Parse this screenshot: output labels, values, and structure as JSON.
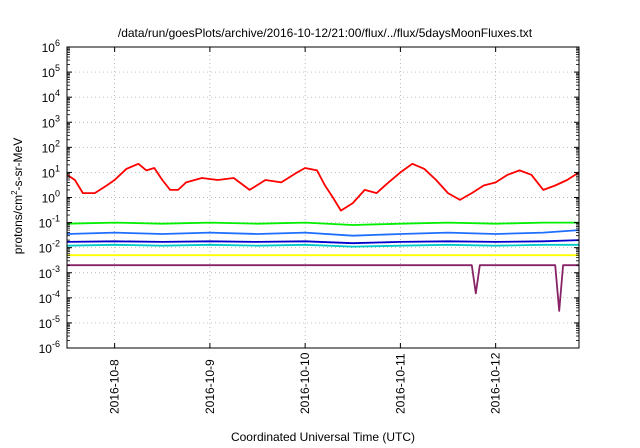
{
  "chart_data": {
    "type": "line",
    "title": "/data/run/goesPlots/archive/2016-10-12/21:00/flux/../flux/5daysMoonFluxes.txt",
    "xlabel": "Coordinated Universal Time (UTC)",
    "ylabel": {
      "before": "protons/cm",
      "sup": "2",
      "after": "-s-sr-MeV"
    },
    "yscale": "log",
    "ylim": [
      1e-06,
      1000000.0
    ],
    "xlim": [
      "2016-10-07T12:00",
      "2016-10-12T21:00"
    ],
    "grid": true,
    "legend": "none",
    "y_ticks": [
      {
        "base": "10",
        "exp": "-6"
      },
      {
        "base": "10",
        "exp": "-5"
      },
      {
        "base": "10",
        "exp": "-4"
      },
      {
        "base": "10",
        "exp": "-3"
      },
      {
        "base": "10",
        "exp": "-2"
      },
      {
        "base": "10",
        "exp": "-1"
      },
      {
        "base": "10",
        "exp": "0"
      },
      {
        "base": "10",
        "exp": "1"
      },
      {
        "base": "10",
        "exp": "2"
      },
      {
        "base": "10",
        "exp": "3"
      },
      {
        "base": "10",
        "exp": "4"
      },
      {
        "base": "10",
        "exp": "5"
      },
      {
        "base": "10",
        "exp": "6"
      }
    ],
    "x_ticks": [
      "2016-10-8",
      "2016-10-9",
      "2016-10-10",
      "2016-10-11",
      "2016-10-12"
    ],
    "series": [
      {
        "color": "#ff0000",
        "x": [
          "2016-10-07T12:00",
          "2016-10-07T14:00",
          "2016-10-07T16:00",
          "2016-10-07T19:00",
          "2016-10-07T22:00",
          "2016-10-08T00:00",
          "2016-10-08T03:00",
          "2016-10-08T06:00",
          "2016-10-08T08:00",
          "2016-10-08T10:00",
          "2016-10-08T12:00",
          "2016-10-08T14:00",
          "2016-10-08T16:00",
          "2016-10-08T18:00",
          "2016-10-08T22:00",
          "2016-10-09T02:00",
          "2016-10-09T06:00",
          "2016-10-09T10:00",
          "2016-10-09T14:00",
          "2016-10-09T18:00",
          "2016-10-09T22:00",
          "2016-10-10T00:00",
          "2016-10-10T03:00",
          "2016-10-10T05:00",
          "2016-10-10T07:00",
          "2016-10-10T09:00",
          "2016-10-10T12:00",
          "2016-10-10T15:00",
          "2016-10-10T18:00",
          "2016-10-10T21:00",
          "2016-10-11T00:00",
          "2016-10-11T03:00",
          "2016-10-11T06:00",
          "2016-10-11T09:00",
          "2016-10-11T12:00",
          "2016-10-11T15:00",
          "2016-10-11T18:00",
          "2016-10-11T21:00",
          "2016-10-12T00:00",
          "2016-10-12T03:00",
          "2016-10-12T06:00",
          "2016-10-12T09:00",
          "2016-10-12T12:00",
          "2016-10-12T15:00",
          "2016-10-12T18:00",
          "2016-10-12T21:00"
        ],
        "values": [
          8,
          5,
          1.5,
          1.5,
          3,
          5,
          14,
          22,
          12,
          15,
          5,
          2,
          2,
          4,
          6,
          5,
          6,
          2,
          5,
          4,
          10,
          15,
          12,
          3,
          1,
          0.3,
          0.6,
          2,
          1.5,
          4,
          10,
          22,
          14,
          5,
          1.5,
          0.8,
          1.5,
          3,
          4,
          8,
          12,
          8,
          2,
          3,
          5,
          10
        ]
      },
      {
        "color": "#00ee00",
        "x": [
          "2016-10-07T12:00",
          "2016-10-08T00:00",
          "2016-10-08T12:00",
          "2016-10-09T00:00",
          "2016-10-09T12:00",
          "2016-10-10T00:00",
          "2016-10-10T12:00",
          "2016-10-11T00:00",
          "2016-10-11T12:00",
          "2016-10-12T00:00",
          "2016-10-12T12:00",
          "2016-10-12T21:00"
        ],
        "values": [
          0.09,
          0.1,
          0.09,
          0.1,
          0.09,
          0.1,
          0.08,
          0.09,
          0.1,
          0.09,
          0.1,
          0.1
        ]
      },
      {
        "color": "#1f6fff",
        "x": [
          "2016-10-07T12:00",
          "2016-10-08T00:00",
          "2016-10-08T12:00",
          "2016-10-09T00:00",
          "2016-10-09T12:00",
          "2016-10-10T00:00",
          "2016-10-10T12:00",
          "2016-10-11T00:00",
          "2016-10-11T12:00",
          "2016-10-12T00:00",
          "2016-10-12T12:00",
          "2016-10-12T21:00"
        ],
        "values": [
          0.035,
          0.04,
          0.035,
          0.04,
          0.035,
          0.04,
          0.03,
          0.035,
          0.04,
          0.035,
          0.04,
          0.05
        ]
      },
      {
        "color": "#00c8c8",
        "x": [
          "2016-10-07T12:00",
          "2016-10-08T00:00",
          "2016-10-08T12:00",
          "2016-10-09T00:00",
          "2016-10-09T12:00",
          "2016-10-10T00:00",
          "2016-10-10T12:00",
          "2016-10-11T00:00",
          "2016-10-11T12:00",
          "2016-10-12T00:00",
          "2016-10-12T12:00",
          "2016-10-12T21:00"
        ],
        "values": [
          0.012,
          0.013,
          0.012,
          0.013,
          0.012,
          0.013,
          0.011,
          0.012,
          0.013,
          0.012,
          0.013,
          0.013
        ]
      },
      {
        "color": "#0000cc",
        "x": [
          "2016-10-07T12:00",
          "2016-10-08T00:00",
          "2016-10-08T12:00",
          "2016-10-09T00:00",
          "2016-10-09T12:00",
          "2016-10-10T00:00",
          "2016-10-10T12:00",
          "2016-10-11T00:00",
          "2016-10-11T12:00",
          "2016-10-12T00:00",
          "2016-10-12T12:00",
          "2016-10-12T21:00"
        ],
        "values": [
          0.017,
          0.018,
          0.017,
          0.018,
          0.017,
          0.018,
          0.015,
          0.017,
          0.018,
          0.017,
          0.018,
          0.02
        ]
      },
      {
        "color": "#ffff00",
        "x": [
          "2016-10-07T12:00",
          "2016-10-08T00:00",
          "2016-10-08T12:00",
          "2016-10-09T00:00",
          "2016-10-09T12:00",
          "2016-10-10T00:00",
          "2016-10-10T12:00",
          "2016-10-11T00:00",
          "2016-10-11T12:00",
          "2016-10-12T00:00",
          "2016-10-12T12:00",
          "2016-10-12T21:00"
        ],
        "values": [
          0.005,
          0.005,
          0.005,
          0.005,
          0.005,
          0.005,
          0.005,
          0.005,
          0.005,
          0.005,
          0.005,
          0.005
        ]
      },
      {
        "color": "#882266",
        "x": [
          "2016-10-07T12:00",
          "2016-10-08T00:00",
          "2016-10-08T12:00",
          "2016-10-09T00:00",
          "2016-10-09T12:00",
          "2016-10-10T00:00",
          "2016-10-10T12:00",
          "2016-10-11T00:00",
          "2016-10-11T12:00",
          "2016-10-11T18:00",
          "2016-10-11T19:00",
          "2016-10-11T20:00",
          "2016-10-12T00:00",
          "2016-10-12T12:00",
          "2016-10-12T15:00",
          "2016-10-12T16:00",
          "2016-10-12T17:00",
          "2016-10-12T21:00"
        ],
        "values": [
          0.002,
          0.002,
          0.002,
          0.002,
          0.002,
          0.002,
          0.002,
          0.002,
          0.002,
          0.002,
          0.00015,
          0.002,
          0.002,
          0.002,
          0.002,
          3e-05,
          0.002,
          0.002
        ]
      }
    ]
  }
}
